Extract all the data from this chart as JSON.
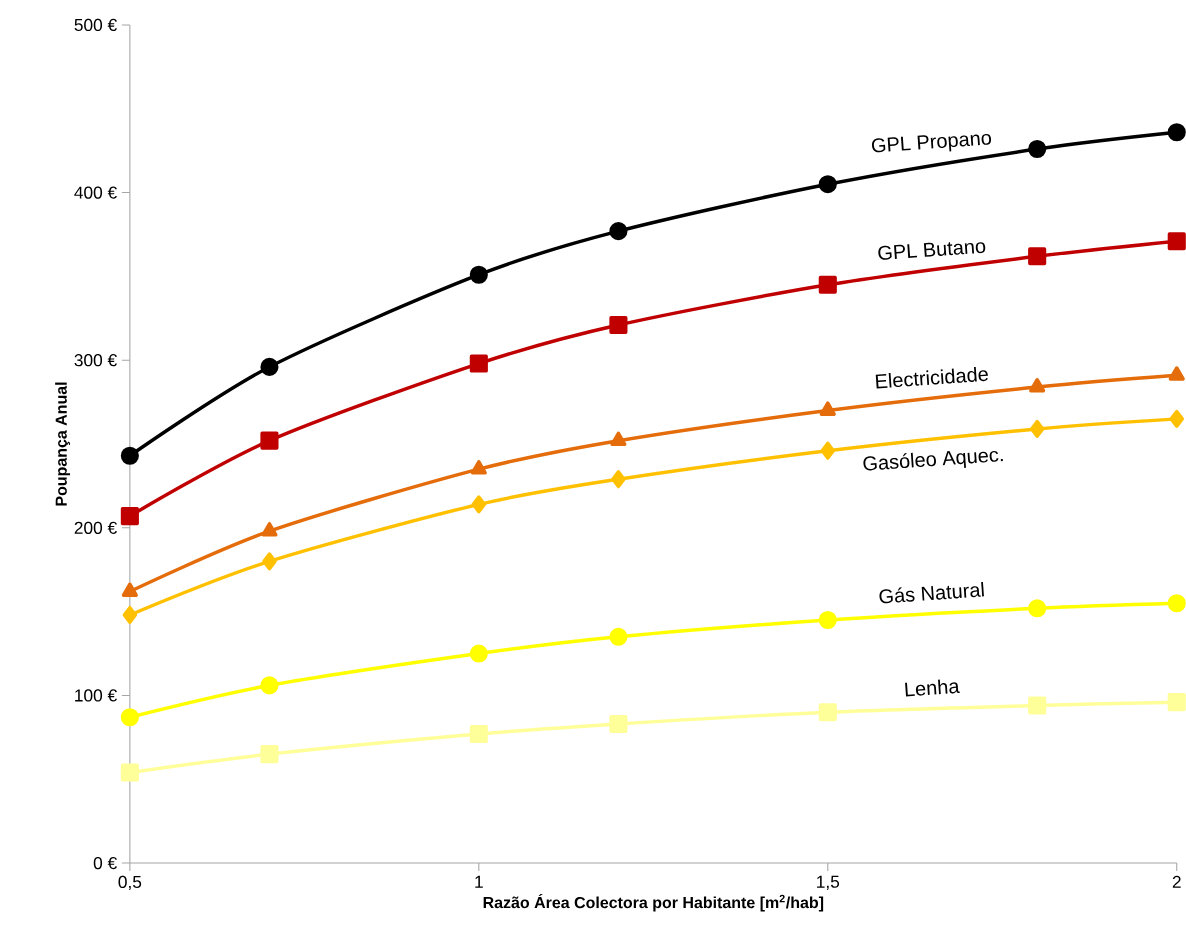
{
  "chart_data": {
    "type": "line",
    "xlabel": "Razão Área Colectora por Habitante [m$^{2}$/hab]",
    "ylabel": "Poupança Anual",
    "x": [
      0.5,
      0.7,
      1.0,
      1.2,
      1.5,
      1.8,
      2.0
    ],
    "xlim": [
      0.5,
      2
    ],
    "xticks": [
      {
        "value": 0.5,
        "label": "0,5"
      },
      1,
      {
        "value": 1.5,
        "label": "1,5"
      },
      2
    ],
    "ylim": [
      0,
      500
    ],
    "yticks": [
      {
        "value": 0,
        "label": "0 €"
      },
      {
        "value": 100,
        "label": "100 €"
      },
      {
        "value": 200,
        "label": "200 €"
      },
      {
        "value": 300,
        "label": "300 €"
      },
      {
        "value": 400,
        "label": "400 €"
      },
      {
        "value": 500,
        "label": "500 €"
      }
    ],
    "grid": false,
    "line_style": "solid",
    "series": [
      {
        "name": "GPL Propano",
        "color": "#000000",
        "marker": "circle",
        "values": [
          243,
          296,
          351,
          377,
          405,
          426,
          436
        ]
      },
      {
        "name": "GPL Butano",
        "color": "#c00000",
        "marker": "square",
        "values": [
          207,
          252,
          298,
          321,
          345,
          362,
          371
        ]
      },
      {
        "name": "Electricidade",
        "color": "#e46c0a",
        "marker": "triangle",
        "values": [
          162,
          198,
          235,
          252,
          270,
          284,
          291
        ]
      },
      {
        "name": "Gasóleo Aquec.",
        "color": "#ffc000",
        "marker": "diamond",
        "values": [
          148,
          180,
          214,
          229,
          246,
          259,
          265
        ]
      },
      {
        "name": "Gás Natural",
        "color": "#ffff00",
        "marker": "circle",
        "values": [
          87,
          106,
          125,
          135,
          145,
          152,
          155
        ]
      },
      {
        "name": "Lenha",
        "color": "#ffff99",
        "marker": "square",
        "values": [
          54,
          65,
          77,
          83,
          90,
          94,
          96
        ]
      }
    ]
  }
}
